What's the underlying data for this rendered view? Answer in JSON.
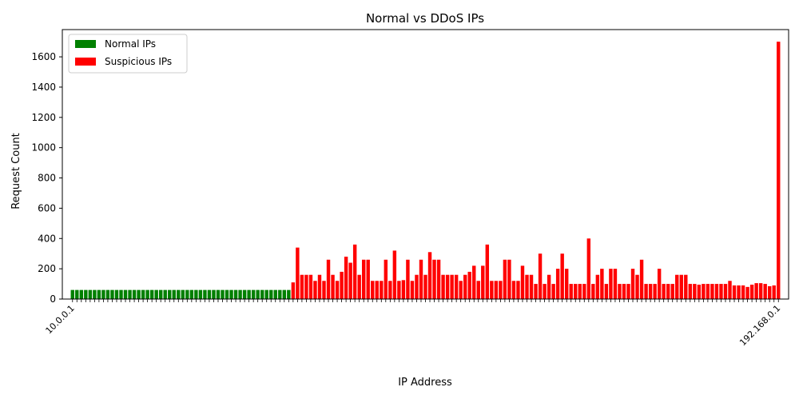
{
  "colors": {
    "normal": "#008000",
    "suspicious": "#ff0000",
    "axis": "#000000",
    "background": "#ffffff"
  },
  "chart_data": {
    "type": "bar",
    "title": "Normal vs DDoS IPs",
    "xlabel": "IP Address",
    "ylabel": "Request Count",
    "ylim": [
      0,
      1780
    ],
    "yticks": [
      0,
      200,
      400,
      600,
      800,
      1000,
      1200,
      1400,
      1600
    ],
    "grid": false,
    "legend_position": "top-left",
    "visible_tick_label_fragments": [
      "10.0.0.1",
      "192.168.0.1"
    ],
    "series": [
      {
        "name": "Normal IPs",
        "color": "#008000",
        "values": [
          60,
          60,
          60,
          60,
          60,
          60,
          60,
          60,
          60,
          60,
          60,
          60,
          60,
          60,
          60,
          60,
          60,
          60,
          60,
          60,
          60,
          60,
          60,
          60,
          60,
          60,
          60,
          60,
          60,
          60,
          60,
          60,
          60,
          60,
          60,
          60,
          60,
          60,
          60,
          60,
          60,
          60,
          60,
          60,
          60,
          60,
          60,
          60,
          60,
          60
        ]
      },
      {
        "name": "Suspicious IPs",
        "color": "#ff0000",
        "values": [
          110,
          340,
          160,
          160,
          160,
          120,
          160,
          120,
          260,
          160,
          120,
          180,
          280,
          240,
          360,
          160,
          260,
          260,
          120,
          120,
          120,
          260,
          120,
          320,
          120,
          125,
          260,
          120,
          160,
          260,
          160,
          310,
          260,
          260,
          160,
          160,
          160,
          160,
          120,
          160,
          180,
          220,
          120,
          220,
          360,
          120,
          120,
          120,
          260,
          260,
          120,
          120,
          220,
          160,
          160,
          100,
          300,
          100,
          160,
          100,
          200,
          300,
          200,
          100,
          100,
          100,
          100,
          400,
          100,
          160,
          200,
          100,
          200,
          200,
          100,
          100,
          100,
          200,
          160,
          260,
          100,
          100,
          100,
          200,
          100,
          100,
          100,
          160,
          160,
          160,
          100,
          100,
          95,
          100,
          100,
          100,
          100,
          100,
          100,
          120,
          90,
          90,
          90,
          80,
          95,
          105,
          105,
          100,
          85,
          90,
          1700
        ]
      }
    ]
  }
}
